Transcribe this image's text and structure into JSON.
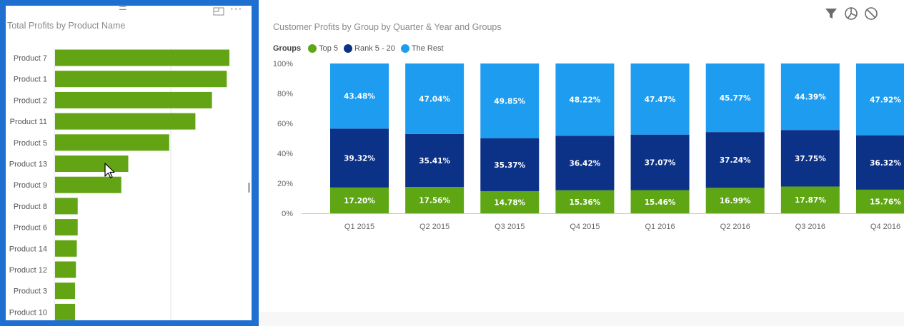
{
  "left_visual": {
    "title": "Total Profits by Product Name",
    "icons": {
      "drag": "drag-handle-icon",
      "focus": "focus-mode-icon",
      "more": "more-options-icon"
    },
    "cursor": "pointer-cursor-icon"
  },
  "right_visual": {
    "title": "Customer Profits by Group by Quarter & Year and Groups",
    "legend": {
      "title": "Groups",
      "items": [
        {
          "label": "Top 5",
          "color": "#5ea614"
        },
        {
          "label": "Rank 5 - 20",
          "color": "#0c3288"
        },
        {
          "label": "The Rest",
          "color": "#1e9cf0"
        }
      ]
    },
    "header_icons": [
      "filter-icon",
      "analytics-icon",
      "no-interaction-icon"
    ]
  },
  "colors": {
    "selection_border": "#1f6fd1",
    "bar": "#62a414"
  },
  "chart_data": [
    {
      "type": "bar",
      "orientation": "horizontal",
      "title": "Total Profits by Product Name",
      "categories": [
        "Product 7",
        "Product 1",
        "Product 2",
        "Product 11",
        "Product 5",
        "Product 13",
        "Product 9",
        "Product 8",
        "Product 6",
        "Product 14",
        "Product 12",
        "Product 3",
        "Product 10"
      ],
      "values": [
        100,
        98.5,
        90,
        80.5,
        65.5,
        42,
        38,
        13,
        13,
        12.5,
        12,
        11.5,
        11.5
      ],
      "xlim": [
        0,
        100
      ],
      "grid": true,
      "color": "#62a414"
    },
    {
      "type": "bar",
      "stacked": "100%",
      "title": "Customer Profits by Group by Quarter & Year and Groups",
      "categories": [
        "Q1 2015",
        "Q2 2015",
        "Q3 2015",
        "Q4 2015",
        "Q1 2016",
        "Q2 2016",
        "Q3 2016",
        "Q4 2016"
      ],
      "series": [
        {
          "name": "Top 5",
          "color": "#5ea614",
          "values": [
            17.2,
            17.56,
            14.78,
            15.36,
            15.46,
            16.99,
            17.87,
            15.76
          ],
          "labels": [
            "17.20%",
            "17.56%",
            "14.78%",
            "15.36%",
            "15.46%",
            "16.99%",
            "17.87%",
            "15.76%"
          ]
        },
        {
          "name": "Rank 5 - 20",
          "color": "#0c3288",
          "values": [
            39.32,
            35.41,
            35.37,
            36.42,
            37.07,
            37.24,
            37.75,
            36.32
          ],
          "labels": [
            "39.32%",
            "35.41%",
            "35.37%",
            "36.42%",
            "37.07%",
            "37.24%",
            "37.75%",
            "36.32%"
          ]
        },
        {
          "name": "The Rest",
          "color": "#1e9cf0",
          "values": [
            43.48,
            47.04,
            49.85,
            48.22,
            47.47,
            45.77,
            44.39,
            47.92
          ],
          "labels": [
            "43.48%",
            "47.04%",
            "49.85%",
            "48.22%",
            "47.47%",
            "45.77%",
            "44.39%",
            "47.92%"
          ]
        }
      ],
      "y_ticks": [
        "0%",
        "20%",
        "40%",
        "60%",
        "80%",
        "100%"
      ],
      "ylim": [
        0,
        100
      ],
      "legend_title": "Groups",
      "legend_position": "top-left"
    }
  ]
}
